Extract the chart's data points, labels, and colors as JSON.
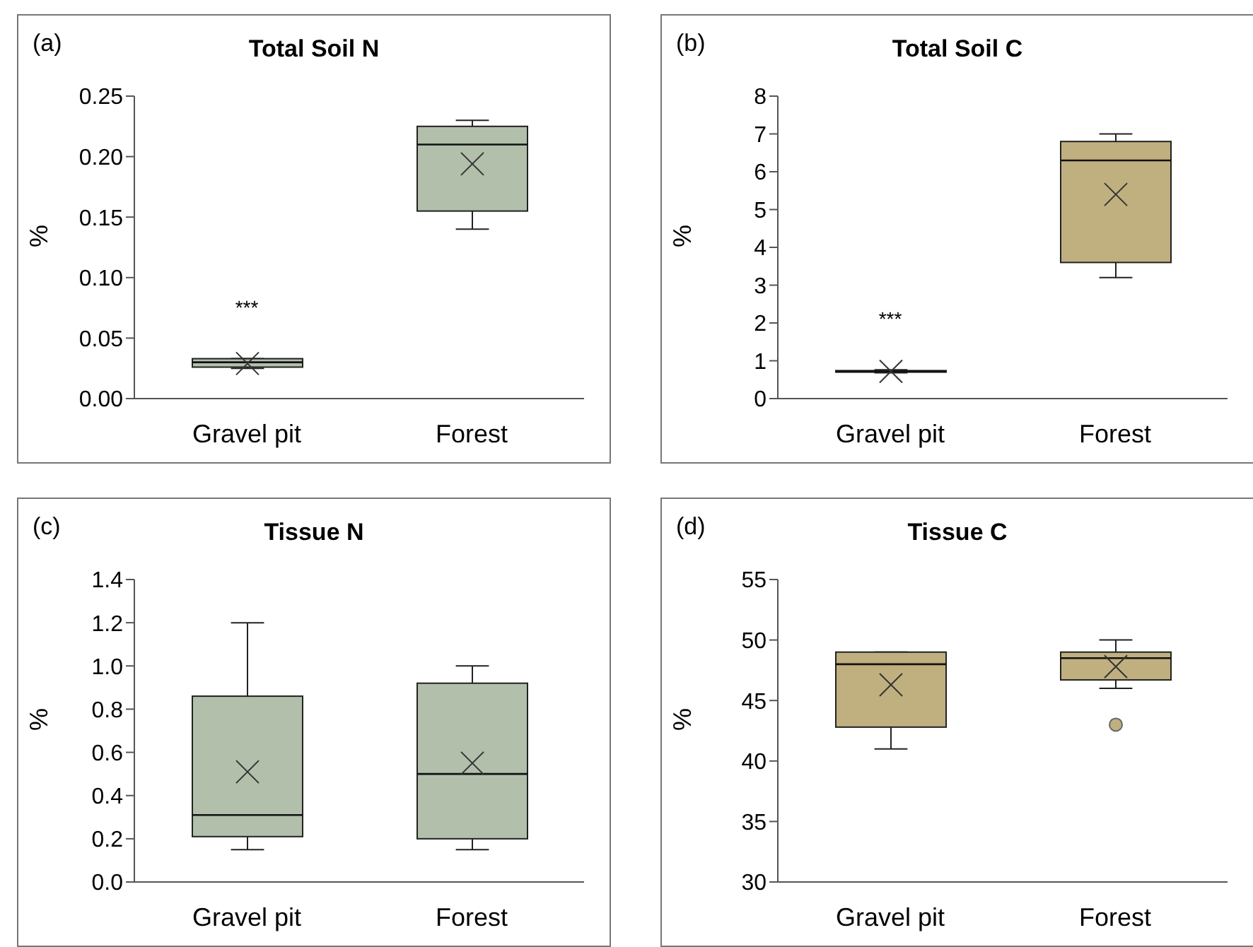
{
  "chart_data": [
    {
      "type": "box",
      "title": "Total Soil N",
      "ylabel": "%",
      "categories": [
        "Gravel pit",
        "Forest"
      ],
      "color": "#b1bfab",
      "boxes": [
        {
          "low": 0.025,
          "q1": 0.026,
          "median": 0.03,
          "q3": 0.033,
          "high": 0.033,
          "mean": 0.029
        },
        {
          "low": 0.14,
          "q1": 0.155,
          "median": 0.21,
          "q3": 0.225,
          "high": 0.23,
          "mean": 0.194
        }
      ],
      "ylim": [
        0,
        0.25
      ],
      "yticks": [
        {
          "value": 0,
          "label": "0.00"
        },
        {
          "value": 0.05,
          "label": "0.05"
        },
        {
          "value": 0.1,
          "label": "0.10"
        },
        {
          "value": 0.15,
          "label": "0.15"
        },
        {
          "value": 0.2,
          "label": "0.20"
        },
        {
          "value": 0.25,
          "label": "0.25"
        }
      ],
      "annotations": [
        "(a)",
        "***"
      ]
    },
    {
      "type": "box",
      "title": "Total Soil C",
      "ylabel": "%",
      "categories": [
        "Gravel pit",
        "Forest"
      ],
      "color": "#c0b080",
      "boxes": [
        {
          "low": 0.68,
          "q1": 0.7,
          "median": 0.72,
          "q3": 0.74,
          "high": 0.76,
          "mean": 0.72
        },
        {
          "low": 3.2,
          "q1": 3.6,
          "median": 6.3,
          "q3": 6.8,
          "high": 7.0,
          "mean": 5.4
        }
      ],
      "ylim": [
        0,
        8
      ],
      "yticks": [
        0,
        1,
        2,
        3,
        4,
        5,
        6,
        7,
        8
      ],
      "annotations": [
        "(b)",
        "***"
      ]
    },
    {
      "type": "box",
      "title": "Tissue N",
      "ylabel": "%",
      "categories": [
        "Gravel pit",
        "Forest"
      ],
      "color": "#b1bfab",
      "boxes": [
        {
          "low": 0.15,
          "q1": 0.21,
          "median": 0.31,
          "q3": 0.86,
          "high": 1.2,
          "mean": 0.51
        },
        {
          "low": 0.15,
          "q1": 0.2,
          "median": 0.5,
          "q3": 0.92,
          "high": 1.0,
          "mean": 0.55
        }
      ],
      "ylim": [
        0,
        1.4
      ],
      "yticks": [
        {
          "value": 0,
          "label": "0.0"
        },
        {
          "value": 0.2,
          "label": "0.2"
        },
        {
          "value": 0.4,
          "label": "0.4"
        },
        {
          "value": 0.6,
          "label": "0.6"
        },
        {
          "value": 0.8,
          "label": "0.8"
        },
        {
          "value": 1,
          "label": "1.0"
        },
        {
          "value": 1.2,
          "label": "1.2"
        },
        {
          "value": 1.4,
          "label": "1.4"
        }
      ],
      "annotations": [
        "(c)"
      ]
    },
    {
      "type": "box",
      "title": "Tissue C",
      "ylabel": "%",
      "categories": [
        "Gravel pit",
        "Forest"
      ],
      "color": "#c0b080",
      "boxes": [
        {
          "low": 41,
          "q1": 42.8,
          "median": 48,
          "q3": 49,
          "high": 49,
          "mean": 46.3
        },
        {
          "low": 46,
          "q1": 46.7,
          "median": 48.5,
          "q3": 49,
          "high": 50,
          "mean": 47.8,
          "outliers": [
            43
          ]
        }
      ],
      "ylim": [
        30,
        55
      ],
      "yticks": [
        30,
        35,
        40,
        45,
        50,
        55
      ],
      "annotations": [
        "(d)"
      ]
    }
  ]
}
